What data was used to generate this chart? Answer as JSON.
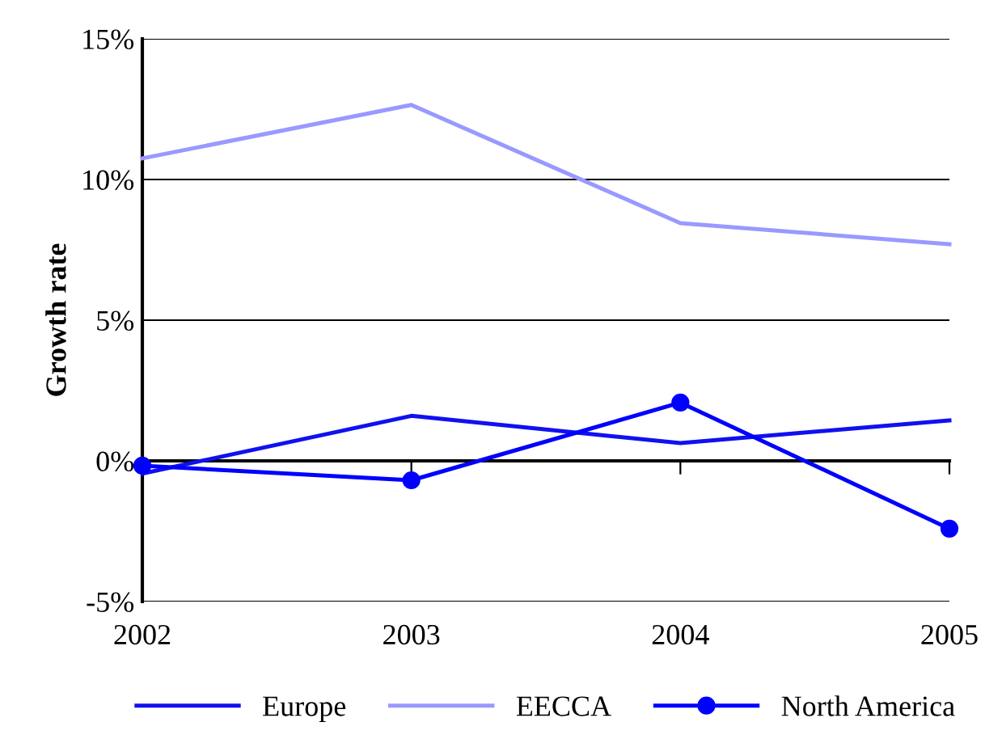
{
  "chart_data": {
    "type": "line",
    "ylabel": "Growth rate",
    "x": [
      2002,
      2003,
      2004,
      2005
    ],
    "series": [
      {
        "name": "Europe",
        "color": "#1010f0",
        "values": [
          -0.45,
          1.6,
          0.63,
          1.44
        ],
        "marker": "none"
      },
      {
        "name": "EECCA",
        "color": "#9999ff",
        "values": [
          10.75,
          12.65,
          8.45,
          7.7
        ],
        "marker": "none"
      },
      {
        "name": "North America",
        "color": "#0000ff",
        "values": [
          -0.17,
          -0.69,
          2.07,
          -2.41
        ],
        "marker": "circle"
      }
    ],
    "xlim": [
      2002,
      2005
    ],
    "xticks": [
      2002,
      2003,
      2004,
      2005
    ],
    "ylim": [
      -5,
      15
    ],
    "yticks": [
      {
        "value": -5,
        "label": "-5%"
      },
      {
        "value": 0,
        "label": "0%"
      },
      {
        "value": 5,
        "label": "5%"
      },
      {
        "value": 10,
        "label": "10%"
      },
      {
        "value": 15,
        "label": "15%"
      }
    ],
    "grid": "y",
    "legend": "bottom",
    "line_style": "solid"
  }
}
